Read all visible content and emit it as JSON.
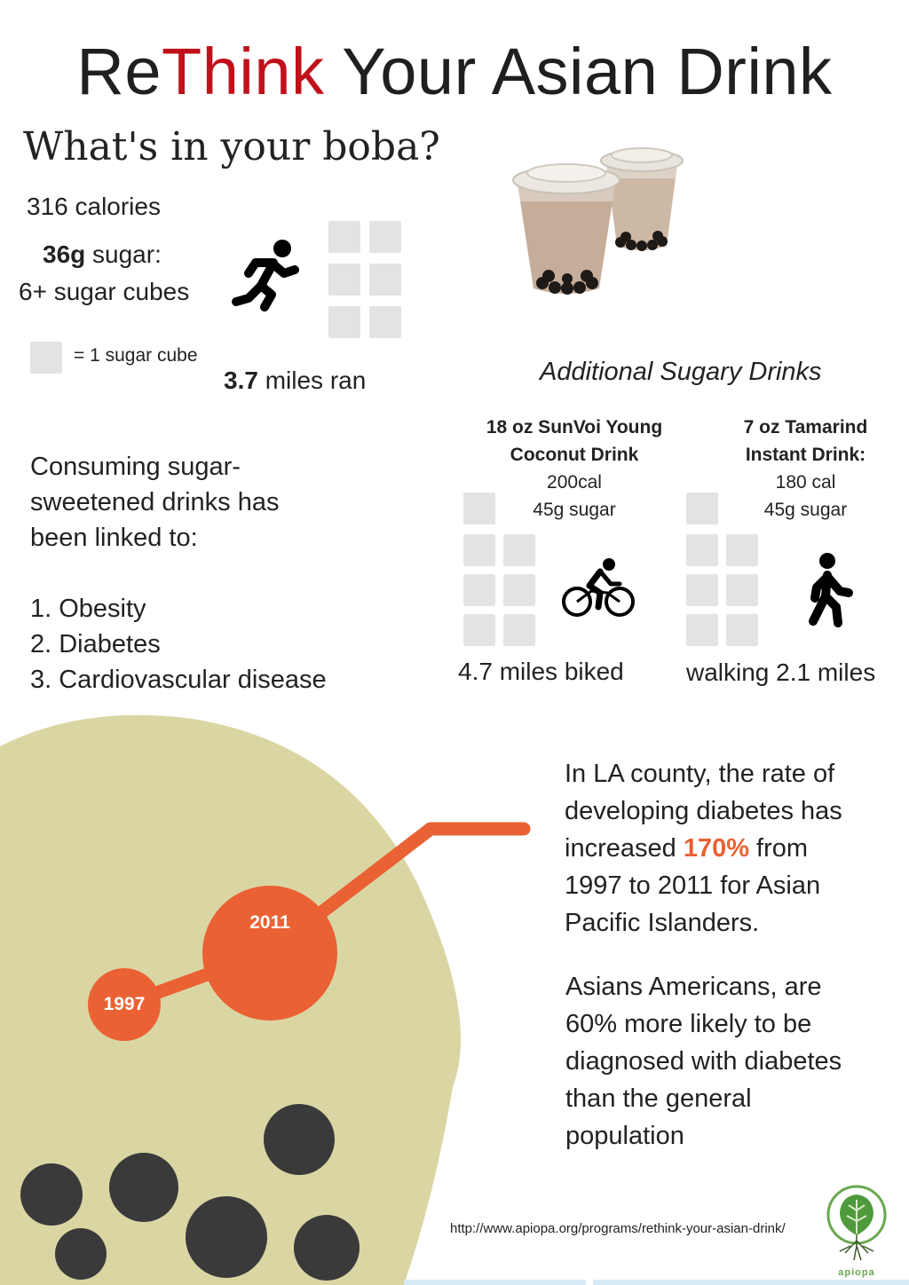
{
  "title": {
    "part1": "Re",
    "part2": "Think",
    "part3": " Your Asian Drink"
  },
  "subtitle": "What's in your boba?",
  "boba": {
    "calories": "316 calories",
    "sugar_bold": "36g",
    "sugar_rest": " sugar:",
    "cubes_text": "6+ sugar cubes",
    "legend": "= 1 sugar cube",
    "miles_bold": "3.7",
    "miles_rest": " miles ran"
  },
  "additional_heading": "Additional Sugary Drinks",
  "drink1": {
    "name_line1": "18 oz SunVoi Young",
    "name_line2": "Coconut Drink",
    "cal": "200cal",
    "sugar": "45g sugar",
    "exercise": "4.7 miles biked"
  },
  "drink2": {
    "name_line1": "7 oz Tamarind",
    "name_line2": "Instant Drink:",
    "cal": "180 cal",
    "sugar": "45g sugar",
    "exercise": "walking 2.1 miles"
  },
  "linked": {
    "line1": "Consuming sugar-",
    "line2": "sweetened drinks has",
    "line3": "been linked to:",
    "items": [
      "1. Obesity",
      "2. Diabetes",
      "3. Cardiovascular disease"
    ]
  },
  "diabetes_stat": {
    "l1": "In LA county, the rate of",
    "l2": "developing diabetes has",
    "l3a": "increased ",
    "l3b": "170%",
    "l3c": " from",
    "l4": "1997 to 2011 for Asian",
    "l5": "Pacific Islanders."
  },
  "asian_stat": {
    "l1": "Asians Americans, are",
    "l2": "60% more likely to be",
    "l3": "diagnosed with diabetes",
    "l4": "than the general",
    "l5": "population"
  },
  "timeline": {
    "year1": "1997",
    "year2": "2011"
  },
  "url": "http://www.apiopa.org/programs/rethink-your-asian-drink/",
  "logo_text": "apiopa",
  "colors": {
    "accent_red": "#c0111a",
    "accent_orange": "#ea6133",
    "khaki": "#dad6a4",
    "pearl": "#3a3a3a",
    "logo_green": "#6aa84f"
  },
  "icons": [
    "runner-icon",
    "cyclist-icon",
    "walker-icon",
    "boba-cups-image",
    "apiopa-logo"
  ]
}
